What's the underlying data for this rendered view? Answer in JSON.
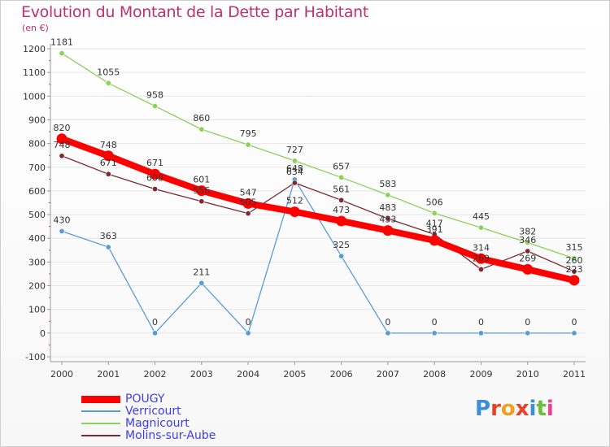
{
  "title": "Evolution du Montant de la Dette par Habitant",
  "unit_label": "(en €)",
  "logo_text": "Proxiti",
  "colors": {
    "title": "#c0306a",
    "axis": "#9a9a9a",
    "grid": "#e6e6e6",
    "legend_text": "#3c3cf0"
  },
  "chart_data": {
    "type": "line",
    "title": "Evolution du Montant de la Dette par Habitant",
    "ylabel": "(en €)",
    "xlabel": "",
    "ylim": [
      -100,
      1200
    ],
    "yticks": [
      -100,
      0,
      100,
      200,
      300,
      400,
      500,
      600,
      700,
      800,
      900,
      1000,
      1100,
      1200
    ],
    "categories": [
      "2000",
      "2001",
      "2002",
      "2003",
      "2004",
      "2005",
      "2006",
      "2007",
      "2008",
      "2009",
      "2010",
      "2011"
    ],
    "series": [
      {
        "name": "POUGY",
        "color": "#ff0000",
        "values": [
          820,
          748,
          671,
          601,
          547,
          512,
          473,
          433,
          391,
          314,
          269,
          223
        ],
        "labels": [
          "820",
          "748",
          "671",
          "601",
          "547",
          "512",
          "473",
          "433",
          "391",
          "314",
          "269",
          "223"
        ]
      },
      {
        "name": "Verricourt",
        "color": "#5b9bd5",
        "values": [
          430,
          363,
          0,
          211,
          0,
          648,
          325,
          0,
          0,
          0,
          0,
          0
        ],
        "labels": [
          "430",
          "363",
          "0",
          "211",
          "0",
          "648",
          "325",
          "0",
          "0",
          "0",
          "0",
          "0"
        ]
      },
      {
        "name": "Magnicourt",
        "color": "#8bd15a",
        "values": [
          1181,
          1055,
          958,
          860,
          795,
          727,
          657,
          583,
          506,
          445,
          382,
          315
        ],
        "labels": [
          "1181",
          "1055",
          "958",
          "860",
          "795",
          "727",
          "657",
          "583",
          "506",
          "445",
          "382",
          "315"
        ]
      },
      {
        "name": "Molins-sur-Aube",
        "color": "#7a2a30",
        "values": [
          748,
          671,
          608,
          556,
          505,
          634,
          561,
          483,
          417,
          269,
          346,
          260
        ],
        "labels": [
          "748",
          "671",
          "608",
          "556",
          "505",
          "634",
          "561",
          "483",
          "417",
          "269",
          "346",
          "260"
        ]
      }
    ],
    "grid": true,
    "legend_position": "bottom-left"
  }
}
